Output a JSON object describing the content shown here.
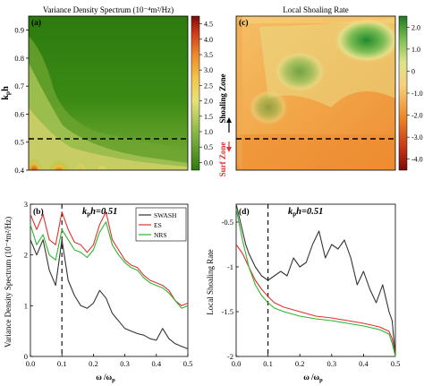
{
  "panels": {
    "a": {
      "tag": "(a)",
      "title": "Variance Density Spectrum  (10⁻⁴m²/Hz)",
      "ylabel_main": "k",
      "ylabel_sub": "p",
      "ylabel_tail": "h",
      "yticks": [
        "0.9",
        "0.8",
        "0.7",
        "0.6",
        "0.5",
        "0.4"
      ],
      "colorbar_ticks": [
        "4.5",
        "4.0",
        "3.5",
        "3.0",
        "2.5",
        "2.0",
        "1.5",
        "1.0",
        "0.5",
        "0.0"
      ]
    },
    "c": {
      "tag": "(c)",
      "title": "Local Shoaling Rate",
      "shoaling_zone": "Shoaling Zone",
      "surf_zone": "Surf Zone",
      "colorbar_ticks": [
        "2.0",
        "1.0",
        "0",
        "-1.0",
        "-2.0",
        "-3.0",
        "-4.0"
      ]
    },
    "b": {
      "tag": "(b)",
      "annotation_main": "k",
      "annotation_sub": "p",
      "annotation_tail": "h=0.51",
      "ylabel": "Variance Density Spectrum  (10⁻⁴m²/Hz)",
      "xlabel_main": "ω /ω",
      "xlabel_sub": "p"
    },
    "d": {
      "tag": "(d)",
      "annotation_main": "k",
      "annotation_sub": "p",
      "annotation_tail": "h=0.51",
      "ylabel": "Local Shoaling Rate",
      "xlabel_main": "ω /ω",
      "xlabel_sub": "p"
    }
  },
  "chart_data": [
    {
      "type": "heatmap",
      "panel": "a",
      "title": "Variance Density Spectrum  (10⁻⁴m²/Hz)",
      "ylabel": "kph",
      "ylim": [
        0.4,
        0.95
      ],
      "xlim": [
        0,
        0.5
      ],
      "yticks": [
        0.9,
        0.8,
        0.7,
        0.6,
        0.5,
        0.4
      ],
      "colorbar": {
        "min": 0,
        "max": 4.5,
        "colormap": "green-yellow-red"
      },
      "reference_line_kph": 0.5,
      "hotspots": [
        {
          "x": 0.1,
          "kph": 0.42,
          "value": 4.5
        },
        {
          "x": 0.02,
          "kph": 0.42,
          "value": 4.0
        },
        {
          "x": 0.23,
          "kph": 0.43,
          "value": 3.0
        }
      ]
    },
    {
      "type": "heatmap",
      "panel": "c",
      "title": "Local Shoaling Rate",
      "ylim": [
        0.4,
        0.95
      ],
      "xlim": [
        0,
        0.5
      ],
      "colorbar": {
        "min": -4.0,
        "max": 2.0,
        "colormap": "red-yellow-green"
      },
      "reference_line_kph": 0.5,
      "annotations": [
        "Shoaling Zone",
        "Surf Zone"
      ]
    },
    {
      "type": "line",
      "panel": "b",
      "xlim": [
        0,
        0.5
      ],
      "ylim": [
        0,
        3
      ],
      "xticks": [
        0.0,
        0.1,
        0.2,
        0.3,
        0.4,
        0.5
      ],
      "yticks": [
        0,
        1,
        2,
        3
      ],
      "vline_x": 0.1,
      "legend_position": "top-right",
      "series": [
        {
          "name": "SWASH",
          "color": "#333333",
          "x": [
            0.0,
            0.02,
            0.04,
            0.06,
            0.08,
            0.1,
            0.12,
            0.14,
            0.16,
            0.18,
            0.2,
            0.22,
            0.24,
            0.26,
            0.28,
            0.3,
            0.32,
            0.34,
            0.36,
            0.38,
            0.4,
            0.42,
            0.44,
            0.46,
            0.48,
            0.5
          ],
          "y": [
            2.3,
            2.0,
            2.3,
            1.7,
            1.4,
            2.3,
            1.5,
            1.2,
            1.0,
            0.95,
            1.05,
            1.3,
            1.15,
            0.85,
            0.7,
            0.55,
            0.5,
            0.45,
            0.42,
            0.35,
            0.32,
            0.55,
            0.35,
            0.25,
            0.2,
            0.15
          ]
        },
        {
          "name": "ES",
          "color": "#e0302f",
          "x": [
            0.0,
            0.02,
            0.04,
            0.06,
            0.08,
            0.1,
            0.12,
            0.14,
            0.16,
            0.18,
            0.2,
            0.22,
            0.24,
            0.26,
            0.28,
            0.3,
            0.32,
            0.34,
            0.36,
            0.38,
            0.4,
            0.42,
            0.44,
            0.46,
            0.48,
            0.5
          ],
          "y": [
            2.8,
            2.5,
            2.8,
            2.3,
            2.2,
            2.85,
            2.5,
            2.25,
            2.2,
            2.05,
            2.2,
            2.6,
            2.85,
            2.3,
            2.1,
            1.9,
            1.8,
            1.75,
            1.6,
            1.5,
            1.45,
            1.4,
            1.3,
            1.1,
            1.0,
            1.05
          ]
        },
        {
          "name": "NRS",
          "color": "#2db52d",
          "x": [
            0.0,
            0.02,
            0.04,
            0.06,
            0.08,
            0.1,
            0.12,
            0.14,
            0.16,
            0.18,
            0.2,
            0.22,
            0.24,
            0.26,
            0.28,
            0.3,
            0.32,
            0.34,
            0.36,
            0.38,
            0.4,
            0.42,
            0.44,
            0.46,
            0.48,
            0.5
          ],
          "y": [
            2.6,
            2.2,
            2.4,
            2.0,
            1.9,
            2.5,
            2.3,
            2.1,
            2.05,
            1.95,
            2.1,
            2.45,
            2.65,
            2.2,
            2.0,
            1.85,
            1.75,
            1.7,
            1.55,
            1.45,
            1.4,
            1.35,
            1.25,
            1.1,
            0.95,
            1.0
          ]
        }
      ]
    },
    {
      "type": "line",
      "panel": "d",
      "xlim": [
        0,
        0.5
      ],
      "ylim": [
        -2.0,
        -0.3
      ],
      "xticks": [
        0.0,
        0.1,
        0.2,
        0.3,
        0.4,
        0.5
      ],
      "yticks": [
        -0.5,
        -1.0,
        -1.5,
        -2.0
      ],
      "vline_x": 0.1,
      "series": [
        {
          "name": "SWASH",
          "color": "#333333",
          "x": [
            0.0,
            0.01,
            0.02,
            0.03,
            0.04,
            0.06,
            0.08,
            0.1,
            0.12,
            0.14,
            0.16,
            0.18,
            0.2,
            0.22,
            0.24,
            0.26,
            0.28,
            0.3,
            0.32,
            0.34,
            0.36,
            0.38,
            0.4,
            0.42,
            0.44,
            0.46,
            0.48,
            0.49,
            0.5
          ],
          "y": [
            -0.3,
            -0.45,
            -0.6,
            -0.75,
            -0.85,
            -1.0,
            -1.1,
            -1.15,
            -1.1,
            -1.05,
            -1.1,
            -0.9,
            -1.0,
            -0.95,
            -0.75,
            -0.6,
            -0.9,
            -0.75,
            -0.8,
            -0.7,
            -0.9,
            -1.2,
            -1.05,
            -1.25,
            -1.4,
            -1.2,
            -1.5,
            -1.6,
            -2.0
          ]
        },
        {
          "name": "ES",
          "color": "#e0302f",
          "x": [
            0.0,
            0.02,
            0.04,
            0.06,
            0.08,
            0.1,
            0.12,
            0.15,
            0.2,
            0.25,
            0.3,
            0.35,
            0.4,
            0.45,
            0.48,
            0.49,
            0.5
          ],
          "y": [
            -0.75,
            -0.85,
            -1.0,
            -1.15,
            -1.25,
            -1.33,
            -1.4,
            -1.45,
            -1.5,
            -1.55,
            -1.57,
            -1.6,
            -1.63,
            -1.67,
            -1.72,
            -1.8,
            -2.0
          ]
        },
        {
          "name": "NRS",
          "color": "#2db52d",
          "x": [
            0.0,
            0.02,
            0.04,
            0.06,
            0.08,
            0.1,
            0.12,
            0.15,
            0.2,
            0.25,
            0.3,
            0.35,
            0.4,
            0.45,
            0.48,
            0.49,
            0.5
          ],
          "y": [
            -0.35,
            -0.7,
            -1.0,
            -1.2,
            -1.32,
            -1.4,
            -1.46,
            -1.5,
            -1.55,
            -1.58,
            -1.6,
            -1.63,
            -1.66,
            -1.7,
            -1.75,
            -1.85,
            -2.0
          ]
        }
      ]
    }
  ]
}
